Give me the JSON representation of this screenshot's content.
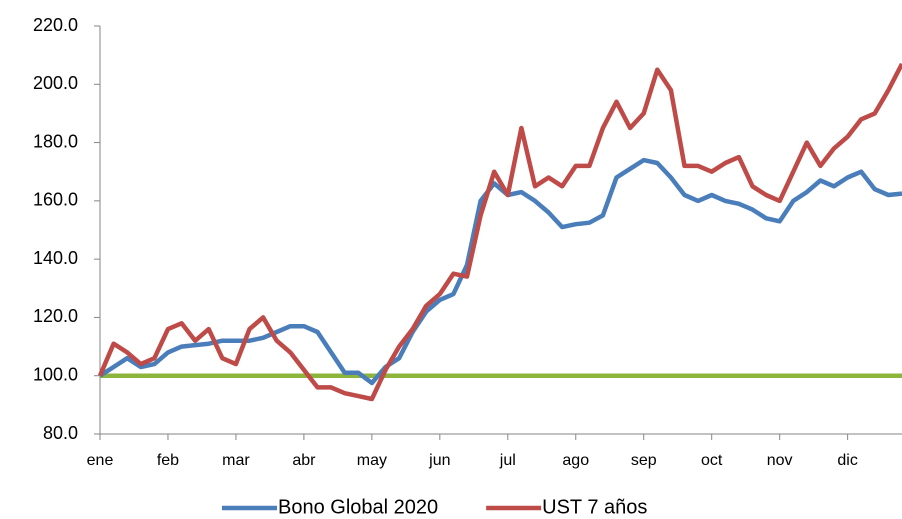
{
  "chart_data": {
    "type": "line",
    "categories": [
      "ene",
      null,
      null,
      null,
      null,
      "feb",
      null,
      null,
      null,
      null,
      "mar",
      null,
      null,
      null,
      null,
      "abr",
      null,
      null,
      null,
      null,
      "may",
      null,
      null,
      null,
      null,
      "jun",
      null,
      null,
      null,
      null,
      "jul",
      null,
      null,
      null,
      null,
      "ago",
      null,
      null,
      null,
      null,
      "sep",
      null,
      null,
      null,
      null,
      "oct",
      null,
      null,
      null,
      null,
      "nov",
      null,
      null,
      null,
      null,
      "dic",
      null,
      null,
      null,
      null
    ],
    "series": [
      {
        "name": "Bono Global 2020",
        "color": "#4a7ebb",
        "values": [
          100,
          103,
          106,
          103,
          104,
          108,
          110,
          110.5,
          111,
          112,
          112,
          112,
          113,
          115,
          117,
          117,
          115,
          108,
          101,
          101,
          97.5,
          103,
          106,
          115,
          122,
          126,
          128,
          138,
          160,
          166,
          162,
          163,
          160,
          156,
          151,
          152,
          152.5,
          155,
          168,
          171,
          174,
          173,
          168,
          162,
          160,
          162,
          160,
          159,
          157,
          154,
          153,
          160,
          163,
          167,
          165,
          168,
          170,
          164,
          162,
          162.5
        ]
      },
      {
        "name": "UST 7 años",
        "color": "#be4b48",
        "values": [
          100,
          111,
          108,
          104,
          106,
          116,
          118,
          112,
          116,
          106,
          104,
          116,
          120,
          112,
          108,
          102,
          96,
          96,
          94,
          93,
          92,
          102,
          110,
          116,
          124,
          128,
          135,
          134,
          155,
          170,
          162,
          185,
          165,
          168,
          165,
          172,
          172,
          185,
          194,
          185,
          190,
          205,
          198,
          172,
          172,
          170,
          173,
          175,
          165,
          162,
          160,
          170,
          180,
          172,
          178,
          182,
          188,
          190,
          198,
          207
        ]
      },
      {
        "color": "#8db53c",
        "values": [
          100,
          100,
          100,
          100,
          100,
          100,
          100,
          100,
          100,
          100,
          100,
          100,
          100,
          100,
          100,
          100,
          100,
          100,
          100,
          100,
          100,
          100,
          100,
          100,
          100,
          100,
          100,
          100,
          100,
          100,
          100,
          100,
          100,
          100,
          100,
          100,
          100,
          100,
          100,
          100,
          100,
          100,
          100,
          100,
          100,
          100,
          100,
          100,
          100,
          100,
          100,
          100,
          100,
          100,
          100,
          100,
          100,
          100,
          100,
          100
        ]
      }
    ],
    "ylim": [
      80,
      220
    ],
    "yticks": [
      {
        "value": 80,
        "label": "80.0"
      },
      {
        "value": 100,
        "label": "100.0"
      },
      {
        "value": 120,
        "label": "120.0"
      },
      {
        "value": 140,
        "label": "140.0"
      },
      {
        "value": 160,
        "label": "160.0"
      },
      {
        "value": 180,
        "label": "180.0"
      },
      {
        "value": 200,
        "label": "200.0"
      },
      {
        "value": 220,
        "label": "220.0"
      }
    ],
    "grid": false,
    "legend": "bottom"
  }
}
